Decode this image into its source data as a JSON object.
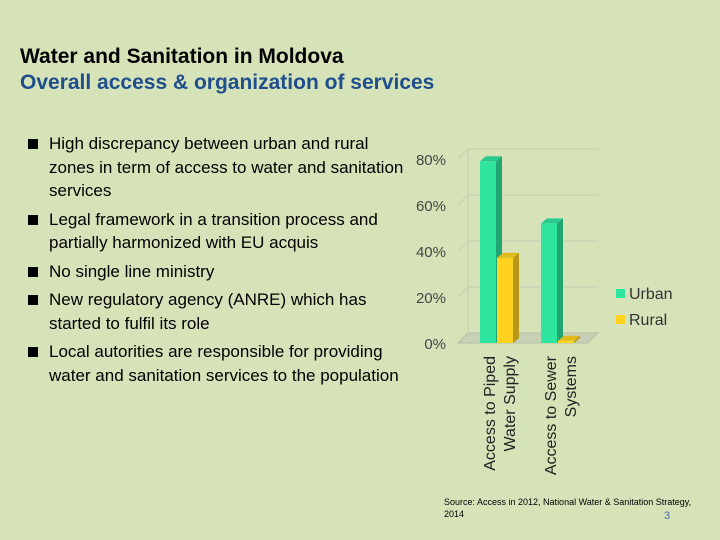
{
  "slide": {
    "title": "Water and Sanitation in Moldova",
    "subtitle": "Overall access & organization of services",
    "bullets": [
      "High discrepancy between urban and rural zones in term of access to water and sanitation services",
      "Legal framework in a transition process and partially harmonized with EU acquis",
      "No single line ministry",
      "New regulatory agency (ANRE) which has started to fulfil its role",
      "Local autorities are responsible for providing water and sanitation services to the population"
    ],
    "source": "Source: Access in 2012, National Water & Sanitation Strategy, 2014",
    "page_number": "3"
  },
  "chart_data": {
    "type": "bar",
    "categories": [
      [
        "Access to Piped",
        "Water Supply"
      ],
      [
        "Access to Sewer",
        "Systems"
      ]
    ],
    "series": [
      {
        "name": "Urban",
        "color": "#2ee6a0",
        "values": [
          79,
          52
        ]
      },
      {
        "name": "Rural",
        "color": "#ffd21f",
        "values": [
          37,
          1
        ]
      }
    ],
    "yticks": [
      "0%",
      "20%",
      "40%",
      "60%",
      "80%"
    ],
    "ylim": [
      0,
      80
    ],
    "legend_position": "right",
    "grid": true,
    "style": "3d"
  }
}
